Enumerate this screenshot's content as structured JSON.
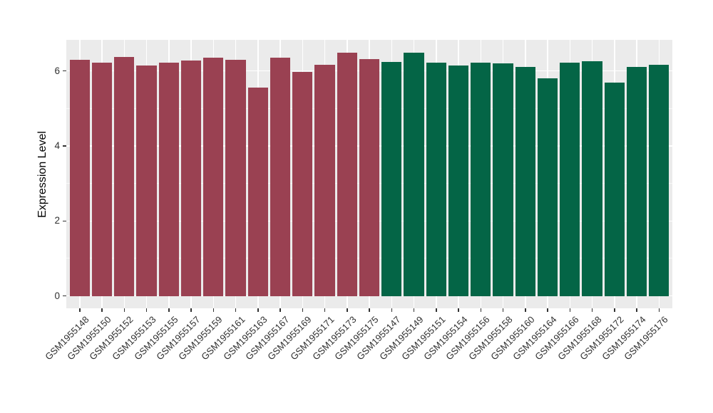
{
  "figure": {
    "background_color": "#ffffff",
    "panel_color": "#ebebeb",
    "grid_color": "#ffffff",
    "axis_text_color": "#303030",
    "axis_title_color": "#000000",
    "tick_mark_color": "#333333",
    "group_colors": {
      "left_group": "#9a4152",
      "right_group": "#046546"
    }
  },
  "chart_data": {
    "type": "bar",
    "title": "",
    "xlabel": "",
    "ylabel": "Expression Level",
    "ylim": [
      -0.33,
      6.83
    ],
    "yticks_major": [
      0,
      2,
      4,
      6
    ],
    "yticks_minor": [
      1,
      3,
      5
    ],
    "grid": true,
    "legend_position": "none",
    "bar_width_fraction": 0.9,
    "x_label_angle_deg": 45,
    "series": [
      {
        "name": "left-group",
        "color": "#9a4152",
        "categories": [
          "GSM1955148",
          "GSM1955150",
          "GSM1955152",
          "GSM1955153",
          "GSM1955155",
          "GSM1955157",
          "GSM1955159",
          "GSM1955161",
          "GSM1955163",
          "GSM1955167",
          "GSM1955169",
          "GSM1955171",
          "GSM1955173",
          "GSM1955175"
        ],
        "values": [
          6.3,
          6.22,
          6.37,
          6.15,
          6.23,
          6.28,
          6.35,
          6.3,
          5.56,
          6.36,
          5.98,
          6.17,
          6.48,
          6.31
        ]
      },
      {
        "name": "right-group",
        "color": "#046546",
        "categories": [
          "GSM1955147",
          "GSM1955149",
          "GSM1955151",
          "GSM1955154",
          "GSM1955156",
          "GSM1955158",
          "GSM1955160",
          "GSM1955164",
          "GSM1955166",
          "GSM1955168",
          "GSM1955172",
          "GSM1955174",
          "GSM1955176"
        ],
        "values": [
          6.25,
          6.48,
          6.23,
          6.15,
          6.23,
          6.21,
          6.11,
          5.8,
          6.23,
          6.26,
          5.69,
          6.1,
          6.17
        ]
      }
    ]
  }
}
